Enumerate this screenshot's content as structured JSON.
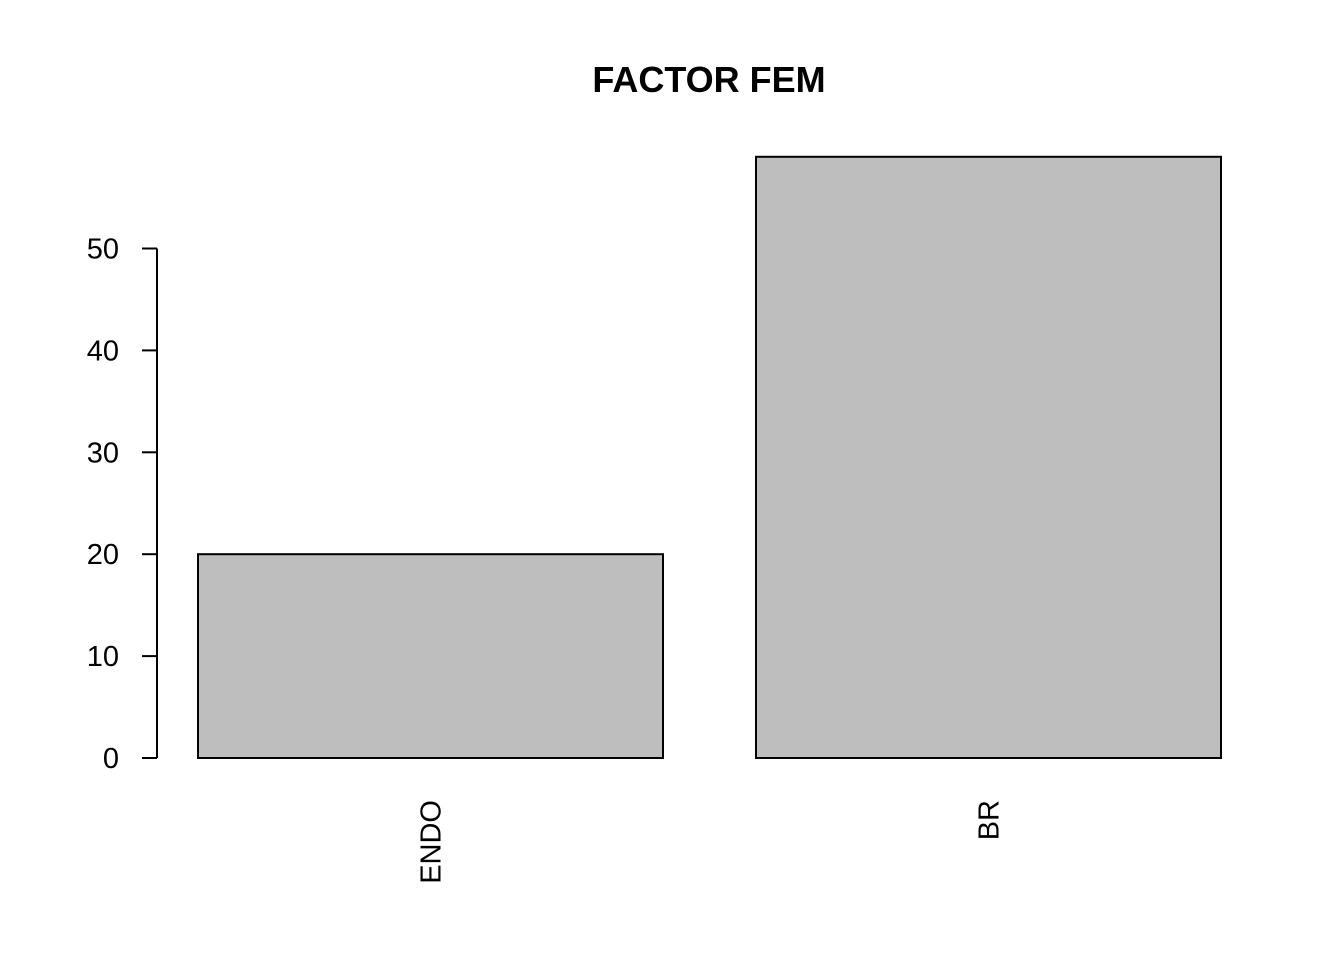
{
  "chart_data": {
    "type": "bar",
    "title": "FACTOR FEM",
    "xlabel": "",
    "ylabel": "",
    "categories": [
      "ENDO",
      "BR"
    ],
    "values": [
      20,
      59
    ],
    "ylim": [
      0,
      59
    ],
    "y_ticks": [
      0,
      10,
      20,
      30,
      40,
      50
    ],
    "x_label_orientation": "vertical",
    "grid": false,
    "legend": "none",
    "colors": {
      "bar_fill": "#bebebe",
      "bar_stroke": "#000000",
      "axis": "#000000",
      "background": "#ffffff"
    }
  }
}
